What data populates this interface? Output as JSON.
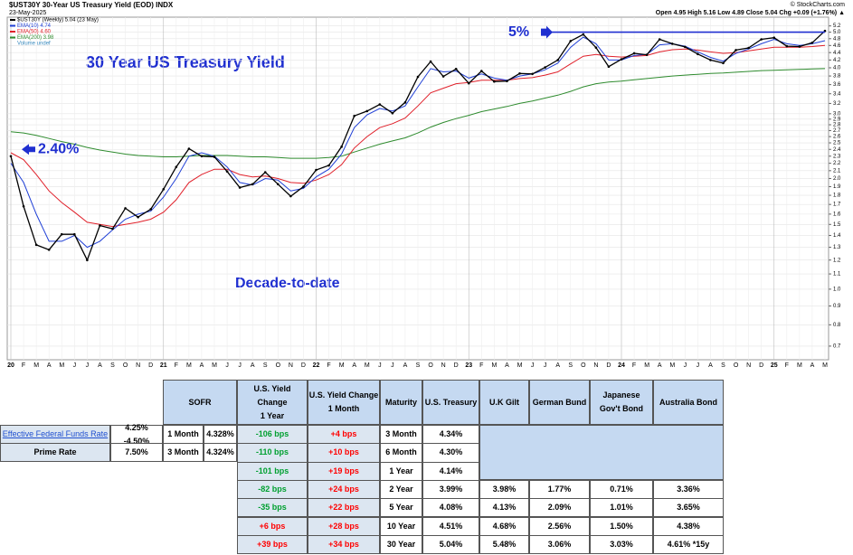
{
  "chart_data": {
    "type": "line",
    "title": "$UST30Y 30-Year US Treasury Yield (EOD) INDX",
    "date": "23-May-2025",
    "quote": "Open 4.95 High 5.16 Low 4.89 Close 5.04 Chg +0.09 (+1.76%) ▲",
    "source": "© StockCharts.com",
    "volume_note": "Volume undef",
    "heading": "30 Year US Treasury Yield",
    "subheading": "Decade-to-date",
    "annotations": [
      {
        "text": "2.40%",
        "value": 2.4
      },
      {
        "text": "5%",
        "value": 5
      }
    ],
    "categories": [
      "20",
      "F",
      "M",
      "A",
      "M",
      "J",
      "J",
      "A",
      "S",
      "O",
      "N",
      "D",
      "21",
      "F",
      "M",
      "A",
      "M",
      "J",
      "J",
      "A",
      "S",
      "O",
      "N",
      "D",
      "22",
      "F",
      "M",
      "A",
      "M",
      "J",
      "J",
      "A",
      "S",
      "O",
      "N",
      "D",
      "23",
      "F",
      "M",
      "A",
      "M",
      "J",
      "J",
      "A",
      "S",
      "O",
      "N",
      "D",
      "24",
      "F",
      "M",
      "A",
      "M",
      "J",
      "J",
      "A",
      "S",
      "O",
      "N",
      "D",
      "25",
      "F",
      "M",
      "A",
      "M"
    ],
    "series": [
      {
        "name": "$UST30Y (Weekly) 5.04 (23 May)",
        "color": "#000000",
        "values": [
          2.3,
          1.68,
          1.32,
          1.28,
          1.41,
          1.41,
          1.2,
          1.49,
          1.46,
          1.66,
          1.57,
          1.65,
          1.87,
          2.15,
          2.41,
          2.3,
          2.29,
          2.09,
          1.89,
          1.93,
          2.08,
          1.93,
          1.79,
          1.9,
          2.11,
          2.17,
          2.44,
          2.96,
          3.05,
          3.18,
          3.01,
          3.22,
          3.78,
          4.16,
          3.79,
          3.97,
          3.63,
          3.92,
          3.67,
          3.68,
          3.86,
          3.85,
          4.01,
          4.2,
          4.73,
          4.93,
          4.54,
          4.03,
          4.22,
          4.38,
          4.34,
          4.78,
          4.65,
          4.56,
          4.36,
          4.2,
          4.12,
          4.47,
          4.53,
          4.78,
          4.83,
          4.58,
          4.57,
          4.68,
          5.04
        ]
      },
      {
        "name": "EMA(10) 4.74",
        "color": "#1f3fd6",
        "values": [
          2.2,
          1.95,
          1.6,
          1.35,
          1.35,
          1.4,
          1.3,
          1.35,
          1.45,
          1.55,
          1.6,
          1.63,
          1.78,
          2.0,
          2.3,
          2.35,
          2.3,
          2.15,
          1.95,
          1.92,
          2.0,
          1.98,
          1.85,
          1.88,
          2.02,
          2.12,
          2.33,
          2.75,
          2.98,
          3.1,
          3.05,
          3.15,
          3.55,
          3.98,
          3.9,
          3.92,
          3.75,
          3.85,
          3.75,
          3.7,
          3.8,
          3.85,
          3.95,
          4.12,
          4.55,
          4.85,
          4.65,
          4.2,
          4.2,
          4.32,
          4.35,
          4.62,
          4.65,
          4.58,
          4.42,
          4.27,
          4.17,
          4.38,
          4.5,
          4.65,
          4.78,
          4.65,
          4.6,
          4.65,
          4.74
        ]
      },
      {
        "name": "EMA(50) 4.60",
        "color": "#e0202a",
        "values": [
          2.35,
          2.25,
          2.05,
          1.85,
          1.72,
          1.62,
          1.52,
          1.5,
          1.48,
          1.5,
          1.52,
          1.55,
          1.62,
          1.75,
          1.95,
          2.05,
          2.12,
          2.12,
          2.05,
          2.02,
          2.03,
          2.0,
          1.95,
          1.94,
          1.98,
          2.05,
          2.18,
          2.42,
          2.6,
          2.75,
          2.82,
          2.92,
          3.15,
          3.42,
          3.52,
          3.62,
          3.65,
          3.7,
          3.7,
          3.7,
          3.74,
          3.76,
          3.82,
          3.9,
          4.1,
          4.3,
          4.35,
          4.3,
          4.28,
          4.3,
          4.32,
          4.42,
          4.48,
          4.5,
          4.47,
          4.42,
          4.38,
          4.4,
          4.45,
          4.5,
          4.55,
          4.55,
          4.55,
          4.57,
          4.6
        ]
      },
      {
        "name": "EMA(200) 3.98",
        "color": "#2e8b2e",
        "values": [
          2.68,
          2.66,
          2.62,
          2.57,
          2.52,
          2.48,
          2.43,
          2.39,
          2.36,
          2.33,
          2.31,
          2.3,
          2.29,
          2.29,
          2.3,
          2.31,
          2.31,
          2.31,
          2.3,
          2.29,
          2.29,
          2.28,
          2.27,
          2.27,
          2.27,
          2.28,
          2.3,
          2.36,
          2.42,
          2.48,
          2.53,
          2.58,
          2.66,
          2.76,
          2.84,
          2.91,
          2.97,
          3.04,
          3.09,
          3.14,
          3.2,
          3.25,
          3.31,
          3.37,
          3.45,
          3.55,
          3.62,
          3.66,
          3.68,
          3.71,
          3.74,
          3.77,
          3.8,
          3.82,
          3.84,
          3.86,
          3.87,
          3.89,
          3.91,
          3.93,
          3.94,
          3.95,
          3.96,
          3.97,
          3.98
        ]
      }
    ],
    "log_scale": true,
    "grid": true,
    "ylim": [
      0.65,
      5.4
    ],
    "yticks": [
      0.7,
      0.8,
      0.9,
      {
        "value": 1,
        "label": "1.0"
      },
      1.1,
      1.2,
      1.3,
      1.4,
      1.5,
      1.6,
      1.7,
      1.8,
      1.9,
      {
        "value": 2,
        "label": "2.0"
      },
      2.1,
      2.2,
      2.3,
      2.4,
      2.5,
      2.6,
      2.7,
      2.8,
      2.9,
      {
        "value": 3,
        "label": "3.0"
      },
      3.2,
      3.4,
      3.6,
      3.8,
      {
        "value": 4,
        "label": "4.0"
      },
      4.2,
      4.4,
      4.6,
      4.8,
      {
        "value": 5,
        "label": "5.0"
      },
      5.2
    ]
  },
  "rates_table": {
    "sofr_header": "SOFR",
    "rows": [
      [
        "Effective Federal Funds Rate",
        "4.25% -4.50%",
        "1 Month",
        "4.328%"
      ],
      [
        "Prime Rate",
        "7.50%",
        "3 Month",
        "4.324%"
      ]
    ]
  },
  "yield_table": {
    "header": [
      [
        "U.S. Yield Change",
        "1 Year"
      ],
      [
        "U.S. Yield Change",
        "1 Month"
      ],
      [
        "Maturity"
      ],
      [
        "U.S. Treasury"
      ],
      [
        "U.K Gilt"
      ],
      [
        "German Bund"
      ],
      [
        "Japanese",
        "Gov't Bond"
      ],
      [
        "Australia Bond"
      ]
    ],
    "rows": [
      [
        "-106 bps",
        "+4 bps",
        "3 Month",
        "4.34%"
      ],
      [
        "-110 bps",
        "+10 bps",
        "6 Month",
        "4.30%"
      ],
      [
        "-101 bps",
        "+19 bps",
        "1 Year",
        "4.14%"
      ],
      [
        "-82 bps",
        "+24 bps",
        "2 Year",
        "3.99%",
        "3.98%",
        "1.77%",
        "0.71%",
        "3.36%"
      ],
      [
        "-35 bps",
        "+22 bps",
        "5 Year",
        "4.08%",
        "4.13%",
        "2.09%",
        "1.01%",
        "3.65%"
      ],
      [
        "+6 bps",
        "+28 bps",
        "10 Year",
        "4.51%",
        "4.68%",
        "2.56%",
        "1.50%",
        "4.38%"
      ],
      [
        "+39 bps",
        "+34 bps",
        "30 Year",
        "5.04%",
        "5.48%",
        "3.06%",
        "3.03%",
        "4.61% *15y"
      ]
    ]
  }
}
